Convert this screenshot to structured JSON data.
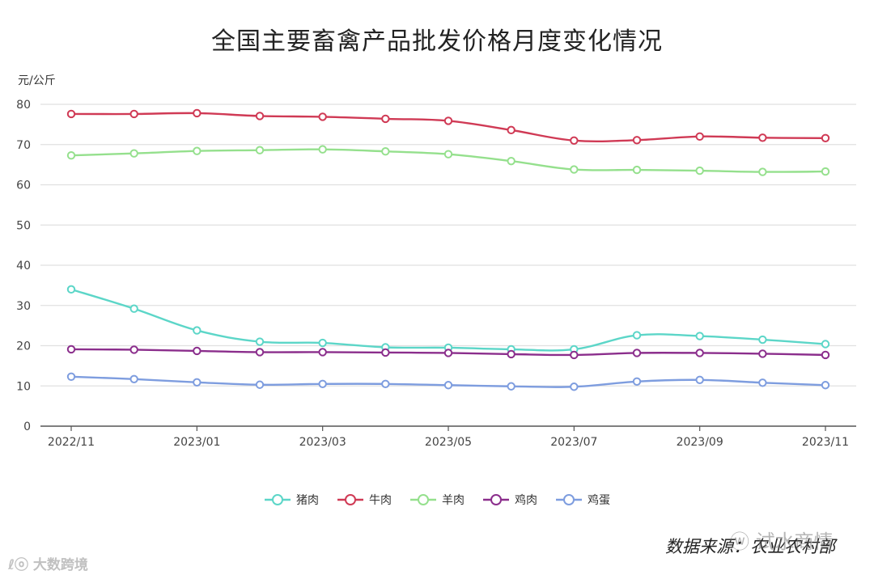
{
  "chart_data": {
    "type": "line",
    "title": "全国主要畜禽产品批发价格月度变化情况",
    "ylabel": "元/公斤",
    "ylim": [
      0,
      80
    ],
    "yticks": [
      0,
      10,
      20,
      30,
      40,
      50,
      60,
      70,
      80
    ],
    "grid": true,
    "legend_position": "bottom",
    "x": [
      "2022/11",
      "2022/12",
      "2023/01",
      "2023/02",
      "2023/03",
      "2023/04",
      "2023/05",
      "2023/06",
      "2023/07",
      "2023/08",
      "2023/09",
      "2023/10",
      "2023/11"
    ],
    "xtick_labels": [
      "2022/11",
      "2023/01",
      "2023/03",
      "2023/05",
      "2023/07",
      "2023/09",
      "2023/11"
    ],
    "series": [
      {
        "name": "猪肉",
        "color": "#5cd6c8",
        "values": [
          34.0,
          29.2,
          23.8,
          21.0,
          20.7,
          19.6,
          19.5,
          19.1,
          19.1,
          22.6,
          22.4,
          21.5,
          20.4
        ]
      },
      {
        "name": "牛肉",
        "color": "#d03a55",
        "values": [
          77.6,
          77.6,
          77.8,
          77.1,
          76.9,
          76.4,
          75.9,
          73.6,
          71.0,
          71.1,
          72.0,
          71.7,
          71.6
        ]
      },
      {
        "name": "羊肉",
        "color": "#95e08d",
        "values": [
          67.3,
          67.8,
          68.4,
          68.6,
          68.8,
          68.3,
          67.6,
          65.9,
          63.8,
          63.7,
          63.5,
          63.2,
          63.3
        ]
      },
      {
        "name": "鸡肉",
        "color": "#8b2e8c",
        "values": [
          19.1,
          19.0,
          18.7,
          18.4,
          18.4,
          18.3,
          18.2,
          17.9,
          17.7,
          18.2,
          18.2,
          18.0,
          17.7
        ]
      },
      {
        "name": "鸡蛋",
        "color": "#7e9ddf",
        "values": [
          12.3,
          11.7,
          10.9,
          10.3,
          10.5,
          10.5,
          10.2,
          9.9,
          9.8,
          11.1,
          11.5,
          10.8,
          10.2
        ]
      }
    ]
  },
  "source_note": "数据来源：农业农村部",
  "watermark_right": "ⓦ 试水商情",
  "watermark_left": "ℓⓞ 大数跨境"
}
